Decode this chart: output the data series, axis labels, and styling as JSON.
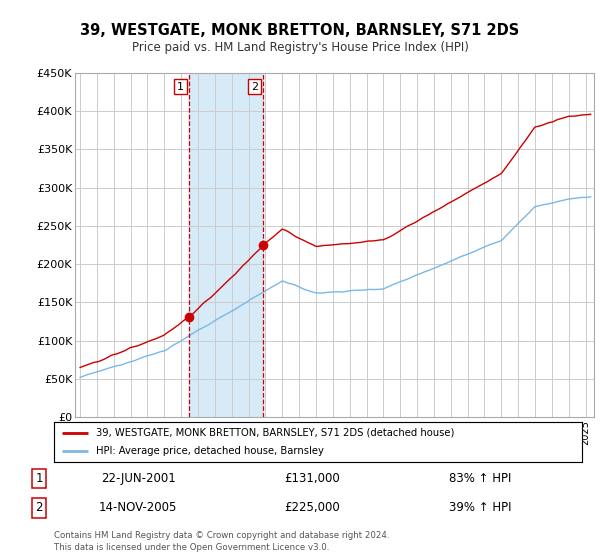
{
  "title": "39, WESTGATE, MONK BRETTON, BARNSLEY, S71 2DS",
  "subtitle": "Price paid vs. HM Land Registry's House Price Index (HPI)",
  "legend_line1": "39, WESTGATE, MONK BRETTON, BARNSLEY, S71 2DS (detached house)",
  "legend_line2": "HPI: Average price, detached house, Barnsley",
  "transaction1_date": "22-JUN-2001",
  "transaction1_price": "£131,000",
  "transaction1_hpi": "83% ↑ HPI",
  "transaction1_year": 2001.47,
  "transaction1_value": 131000,
  "transaction2_date": "14-NOV-2005",
  "transaction2_price": "£225,000",
  "transaction2_hpi": "39% ↑ HPI",
  "transaction2_year": 2005.87,
  "transaction2_value": 225000,
  "shade_start": 2001.47,
  "shade_end": 2005.87,
  "ylim": [
    0,
    450000
  ],
  "yticks": [
    0,
    50000,
    100000,
    150000,
    200000,
    250000,
    300000,
    350000,
    400000,
    450000
  ],
  "ytick_labels": [
    "£0",
    "£50K",
    "£100K",
    "£150K",
    "£200K",
    "£250K",
    "£300K",
    "£350K",
    "£400K",
    "£450K"
  ],
  "hpi_color": "#7ab8e8",
  "price_color": "#cc0000",
  "shade_color": "#d6eaf8",
  "vline_color": "#cc0000",
  "footer": "Contains HM Land Registry data © Crown copyright and database right 2024.\nThis data is licensed under the Open Government Licence v3.0.",
  "grid_color": "#cccccc",
  "xlim_left": 1994.7,
  "xlim_right": 2025.5
}
